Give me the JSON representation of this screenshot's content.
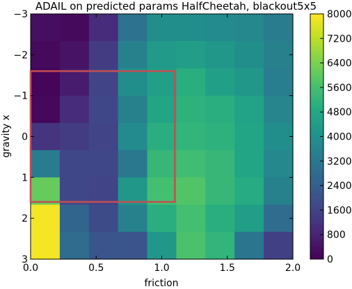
{
  "chart_data": {
    "type": "heatmap",
    "title": "ADAIL on predicted params HalfCheetah, blackout5x5",
    "xlabel": "friction",
    "ylabel": "gravity x",
    "xlim": [
      0.0,
      2.0
    ],
    "ylim": [
      -3,
      3
    ],
    "y_inverted": true,
    "grid": false,
    "colormap": "viridis",
    "x_ticks": [
      "0.0",
      "0.5",
      "1.0",
      "1.5",
      "2.0"
    ],
    "y_ticks": [
      "−3",
      "−2",
      "−1",
      "0",
      "1",
      "2",
      "3"
    ],
    "colorbar": {
      "vmin": 0,
      "vmax": 8000,
      "ticks": [
        "0",
        "800",
        "1600",
        "2400",
        "3200",
        "4000",
        "4800",
        "5600",
        "6400",
        "7200",
        "8000"
      ]
    },
    "grid_shape": [
      9,
      9
    ],
    "x_range": [
      0.0,
      2.0
    ],
    "y_range": [
      -3,
      3
    ],
    "values": [
      [
        300,
        200,
        1000,
        3000,
        3900,
        3900,
        3800,
        3700,
        3300
      ],
      [
        200,
        400,
        1400,
        3500,
        4300,
        4400,
        4200,
        3900,
        3500
      ],
      [
        100,
        600,
        1600,
        3900,
        4500,
        5000,
        4500,
        4200,
        3400
      ],
      [
        150,
        1000,
        1700,
        3500,
        4700,
        5100,
        5000,
        4600,
        3600
      ],
      [
        1200,
        1400,
        1600,
        3800,
        5000,
        5200,
        5100,
        4700,
        3900
      ],
      [
        3300,
        1700,
        1700,
        3200,
        5300,
        5500,
        5300,
        4700,
        3700
      ],
      [
        6100,
        1700,
        1600,
        4200,
        5600,
        5800,
        5300,
        4900,
        3500
      ],
      [
        7900,
        2600,
        1800,
        3500,
        5000,
        5600,
        5000,
        4400,
        2800
      ],
      [
        7900,
        2800,
        2100,
        2100,
        4200,
        5700,
        5200,
        3100,
        1500
      ]
    ],
    "highlight_box": {
      "color": "#c44e52",
      "x_range": [
        0.0,
        1.1
      ],
      "y_range": [
        -1.6,
        1.6
      ]
    }
  }
}
